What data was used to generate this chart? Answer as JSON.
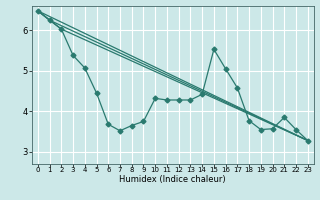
{
  "xlabel": "Humidex (Indice chaleur)",
  "bg_color": "#cce8e8",
  "grid_color": "#ffffff",
  "line_color": "#2a7a6f",
  "xlim": [
    -0.5,
    23.5
  ],
  "ylim": [
    2.7,
    6.6
  ],
  "yticks": [
    3,
    4,
    5,
    6
  ],
  "xticks": [
    0,
    1,
    2,
    3,
    4,
    5,
    6,
    7,
    8,
    9,
    10,
    11,
    12,
    13,
    14,
    15,
    16,
    17,
    18,
    19,
    20,
    21,
    22,
    23
  ],
  "series1_x": [
    0,
    1,
    2,
    3,
    4,
    5,
    6,
    7,
    8,
    9,
    10,
    11,
    12,
    13,
    14,
    15,
    16,
    17,
    18,
    19,
    20,
    21,
    22,
    23
  ],
  "series1_y": [
    6.48,
    6.25,
    6.03,
    5.38,
    5.07,
    4.45,
    3.68,
    3.52,
    3.65,
    3.75,
    4.32,
    4.28,
    4.28,
    4.28,
    4.42,
    5.53,
    5.05,
    4.58,
    3.77,
    3.55,
    3.57,
    3.85,
    3.55,
    3.28
  ],
  "line2_x": [
    0,
    23
  ],
  "line2_y": [
    6.48,
    3.28
  ],
  "line3_x": [
    0,
    1,
    23
  ],
  "line3_y": [
    6.48,
    6.25,
    3.28
  ],
  "line4_x": [
    0,
    2,
    23
  ],
  "line4_y": [
    6.48,
    6.03,
    3.28
  ]
}
